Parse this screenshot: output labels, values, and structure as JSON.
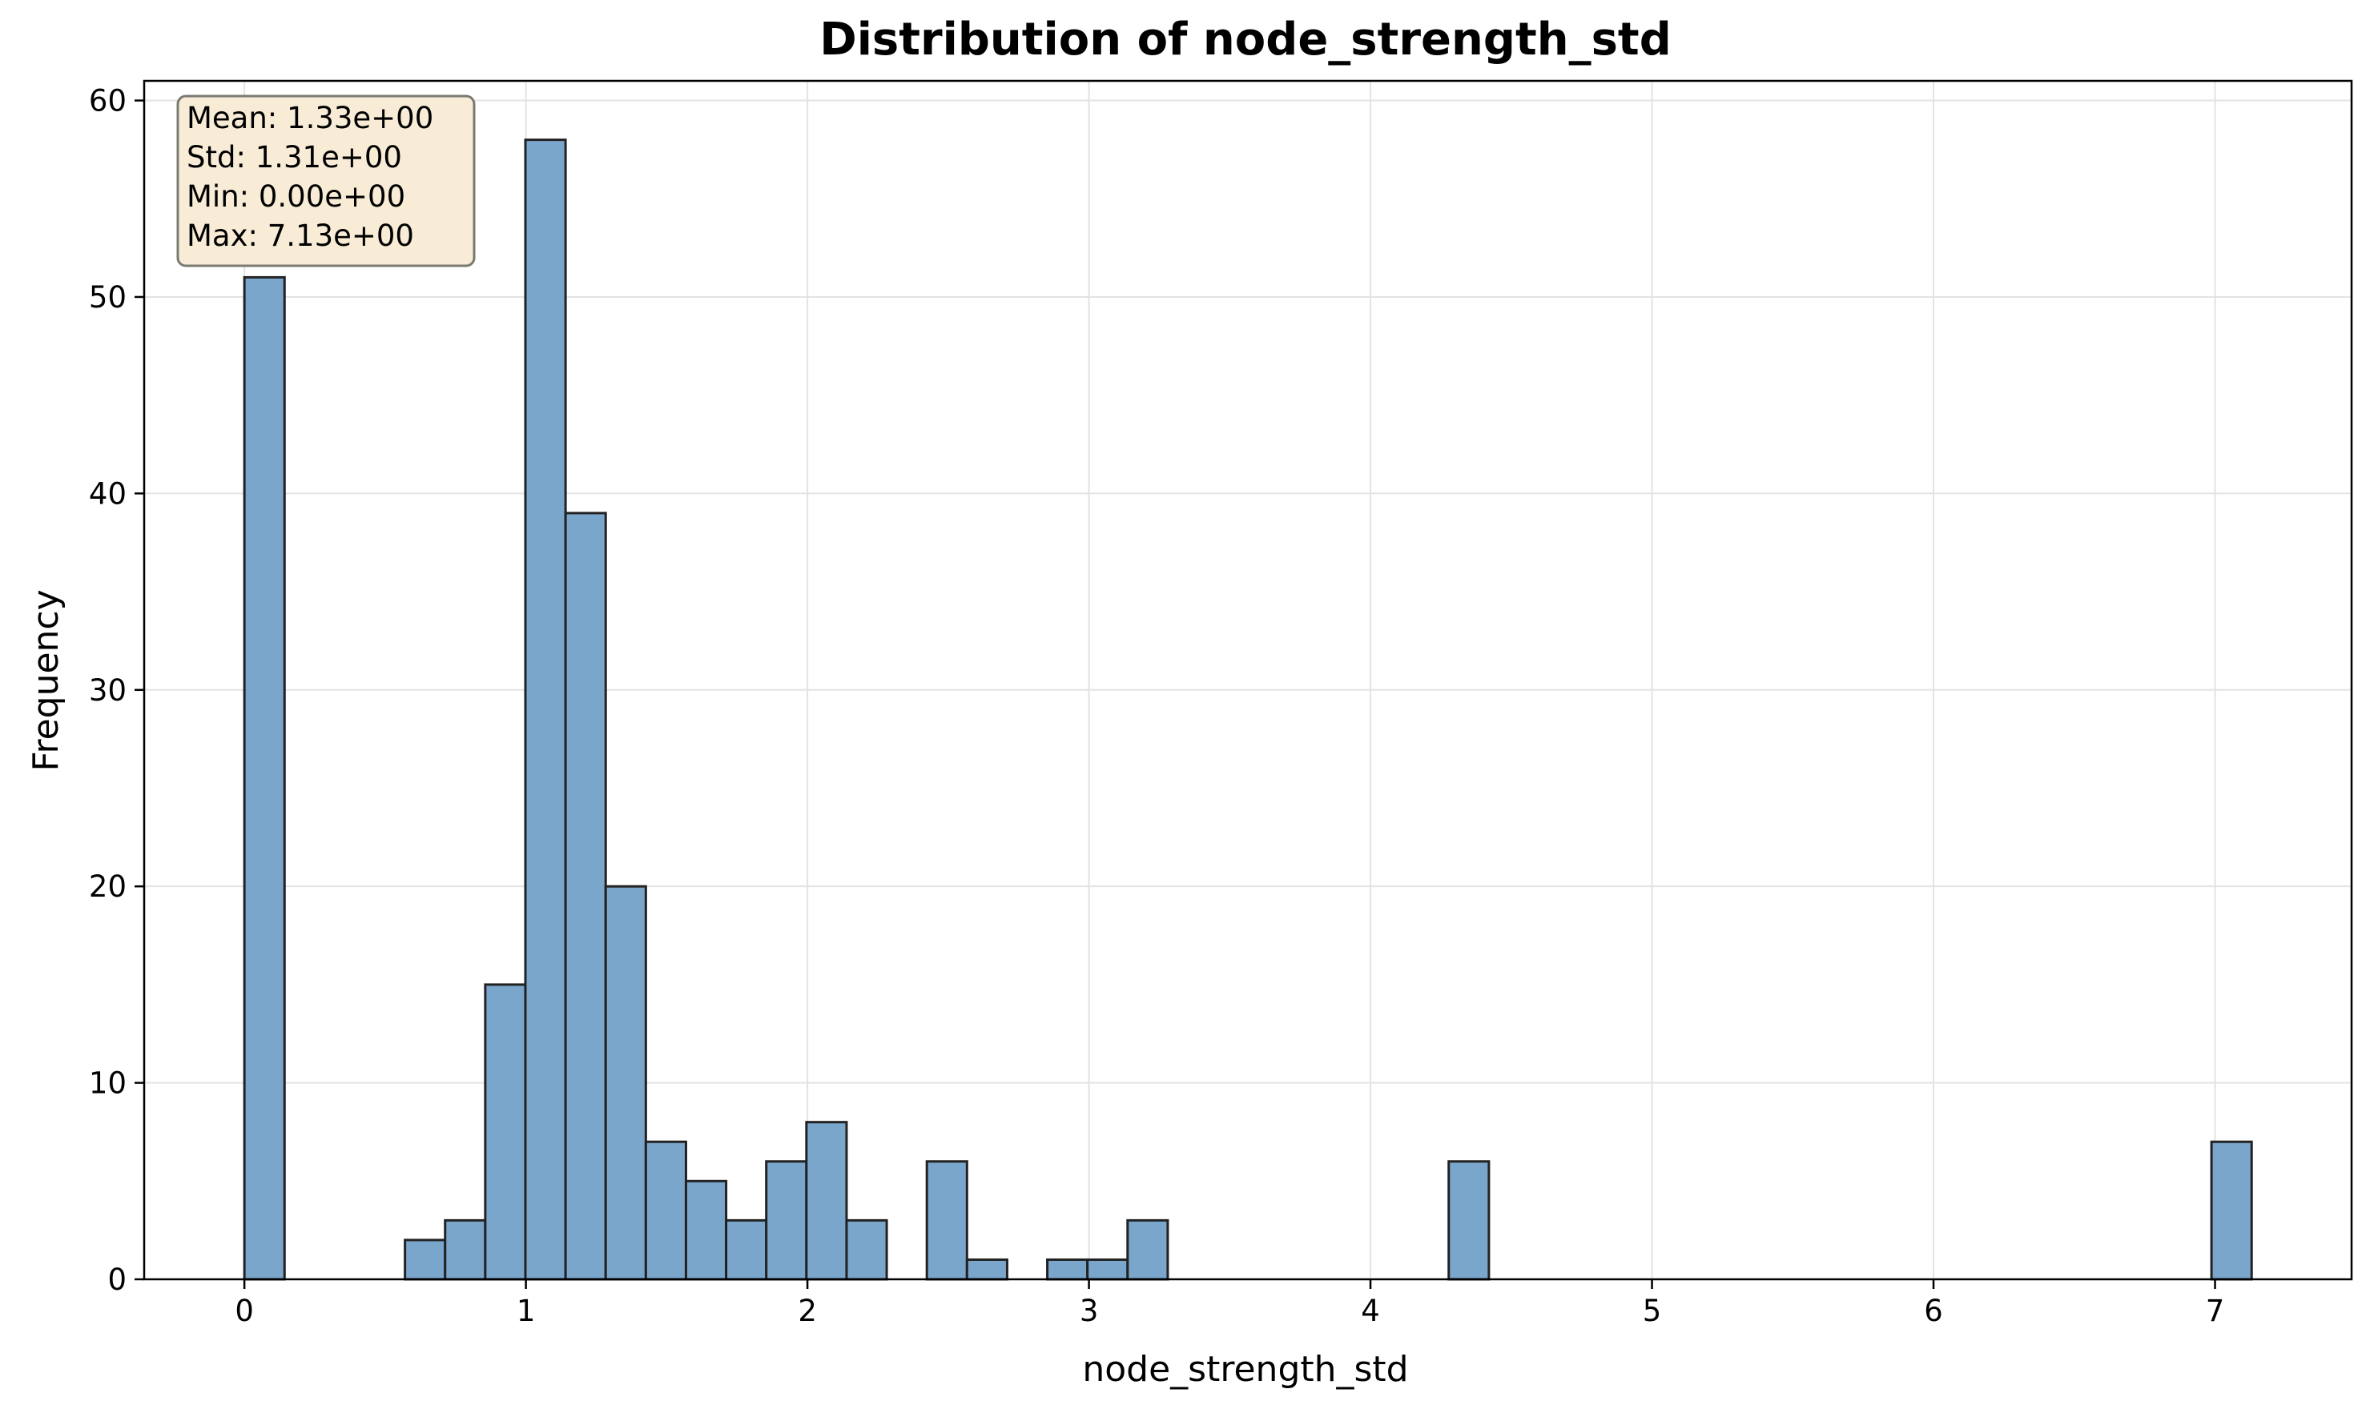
{
  "chart_data": {
    "type": "bar",
    "title": "Distribution of node_strength_std",
    "xlabel": "node_strength_std",
    "ylabel": "Frequency",
    "xlim": [
      -0.356,
      7.485
    ],
    "ylim": [
      0,
      61
    ],
    "x_ticks": [
      "0",
      "1",
      "2",
      "3",
      "4",
      "5",
      "6",
      "7"
    ],
    "y_ticks": [
      "0",
      "10",
      "20",
      "30",
      "40",
      "50",
      "60"
    ],
    "grid": true,
    "bin_width": 0.1426,
    "bars": [
      {
        "x0": 0.0,
        "value": 51
      },
      {
        "x0": 0.5704,
        "value": 2
      },
      {
        "x0": 0.713,
        "value": 3
      },
      {
        "x0": 0.8556,
        "value": 15
      },
      {
        "x0": 0.9982,
        "value": 58
      },
      {
        "x0": 1.1408,
        "value": 39
      },
      {
        "x0": 1.2834,
        "value": 20
      },
      {
        "x0": 1.426,
        "value": 7
      },
      {
        "x0": 1.5686,
        "value": 5
      },
      {
        "x0": 1.7112,
        "value": 3
      },
      {
        "x0": 1.8538,
        "value": 6
      },
      {
        "x0": 1.9964,
        "value": 8
      },
      {
        "x0": 2.139,
        "value": 3
      },
      {
        "x0": 2.4242,
        "value": 6
      },
      {
        "x0": 2.5668,
        "value": 1
      },
      {
        "x0": 2.852,
        "value": 1
      },
      {
        "x0": 2.9946,
        "value": 1
      },
      {
        "x0": 3.1372,
        "value": 3
      },
      {
        "x0": 4.278,
        "value": 6
      },
      {
        "x0": 6.9874,
        "value": 7
      }
    ],
    "stats_box": {
      "lines": [
        "Mean: 1.33e+00",
        "Std: 1.31e+00",
        "Min: 0.00e+00",
        "Max: 7.13e+00"
      ],
      "placement": "top-left"
    },
    "colors": {
      "bar_fill": "#7ba6cc",
      "bar_edge": "#222222",
      "grid": "#e3e3e3",
      "stats_fill": "#f8ecd6",
      "stats_edge": "#7a7a72"
    }
  }
}
